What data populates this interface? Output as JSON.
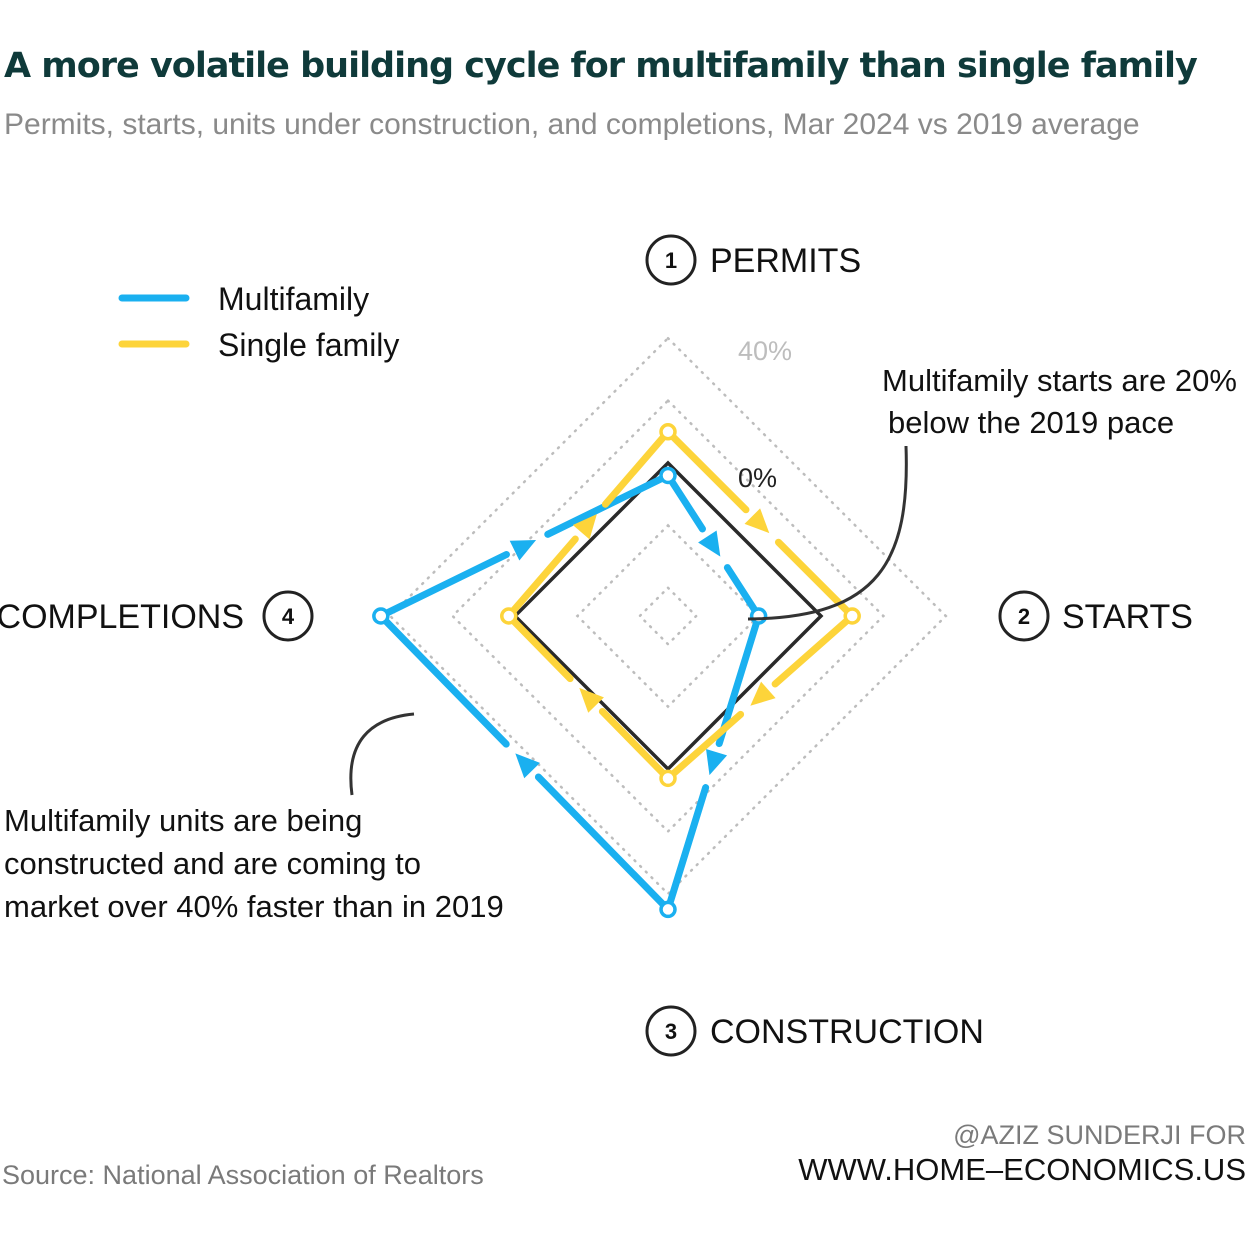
{
  "title": "A more volatile building cycle for multifamily than single family",
  "subtitle": "Permits, starts, units under construction, and completions, Mar 2024 vs 2019 average",
  "source": "Source: National Association of Realtors",
  "credit_line1": "@AZIZ SUNDERJI FOR",
  "credit_line2": "WWW.HOME–ECONOMICS.US",
  "colors": {
    "multifamily": "#1ab0f0",
    "single_family": "#fdd43a",
    "baseline": "#2a2a2a",
    "grid": "#bdbdbd",
    "grid_label": "#bdbdbd",
    "title": "#0f3a3a"
  },
  "annotations": {
    "starts_note": [
      "Multifamily starts are 20%",
      "below the 2019 pace"
    ],
    "completions_note": [
      "Multifamily units are being",
      "constructed and are coming to",
      "market over 40% faster than in 2019"
    ]
  },
  "chart_data": {
    "type": "radar",
    "title": "A more volatile building cycle for multifamily than single family",
    "unit": "% change vs 2019 average",
    "axes": [
      {
        "num": "1",
        "label": "PERMITS"
      },
      {
        "num": "2",
        "label": "STARTS"
      },
      {
        "num": "3",
        "label": "CONSTRUCTION"
      },
      {
        "num": "4",
        "label": "COMPLETIONS"
      }
    ],
    "grid_rings": [
      -40,
      -20,
      0,
      20,
      40
    ],
    "ring_labels": [
      {
        "value": 0,
        "text": "0%"
      },
      {
        "value": 40,
        "text": "40%"
      }
    ],
    "range": [
      -60,
      60
    ],
    "series": [
      {
        "name": "Multifamily",
        "values": [
          -4,
          -20,
          45,
          43
        ]
      },
      {
        "name": "Single family",
        "values": [
          10,
          10,
          3,
          2
        ]
      }
    ]
  }
}
